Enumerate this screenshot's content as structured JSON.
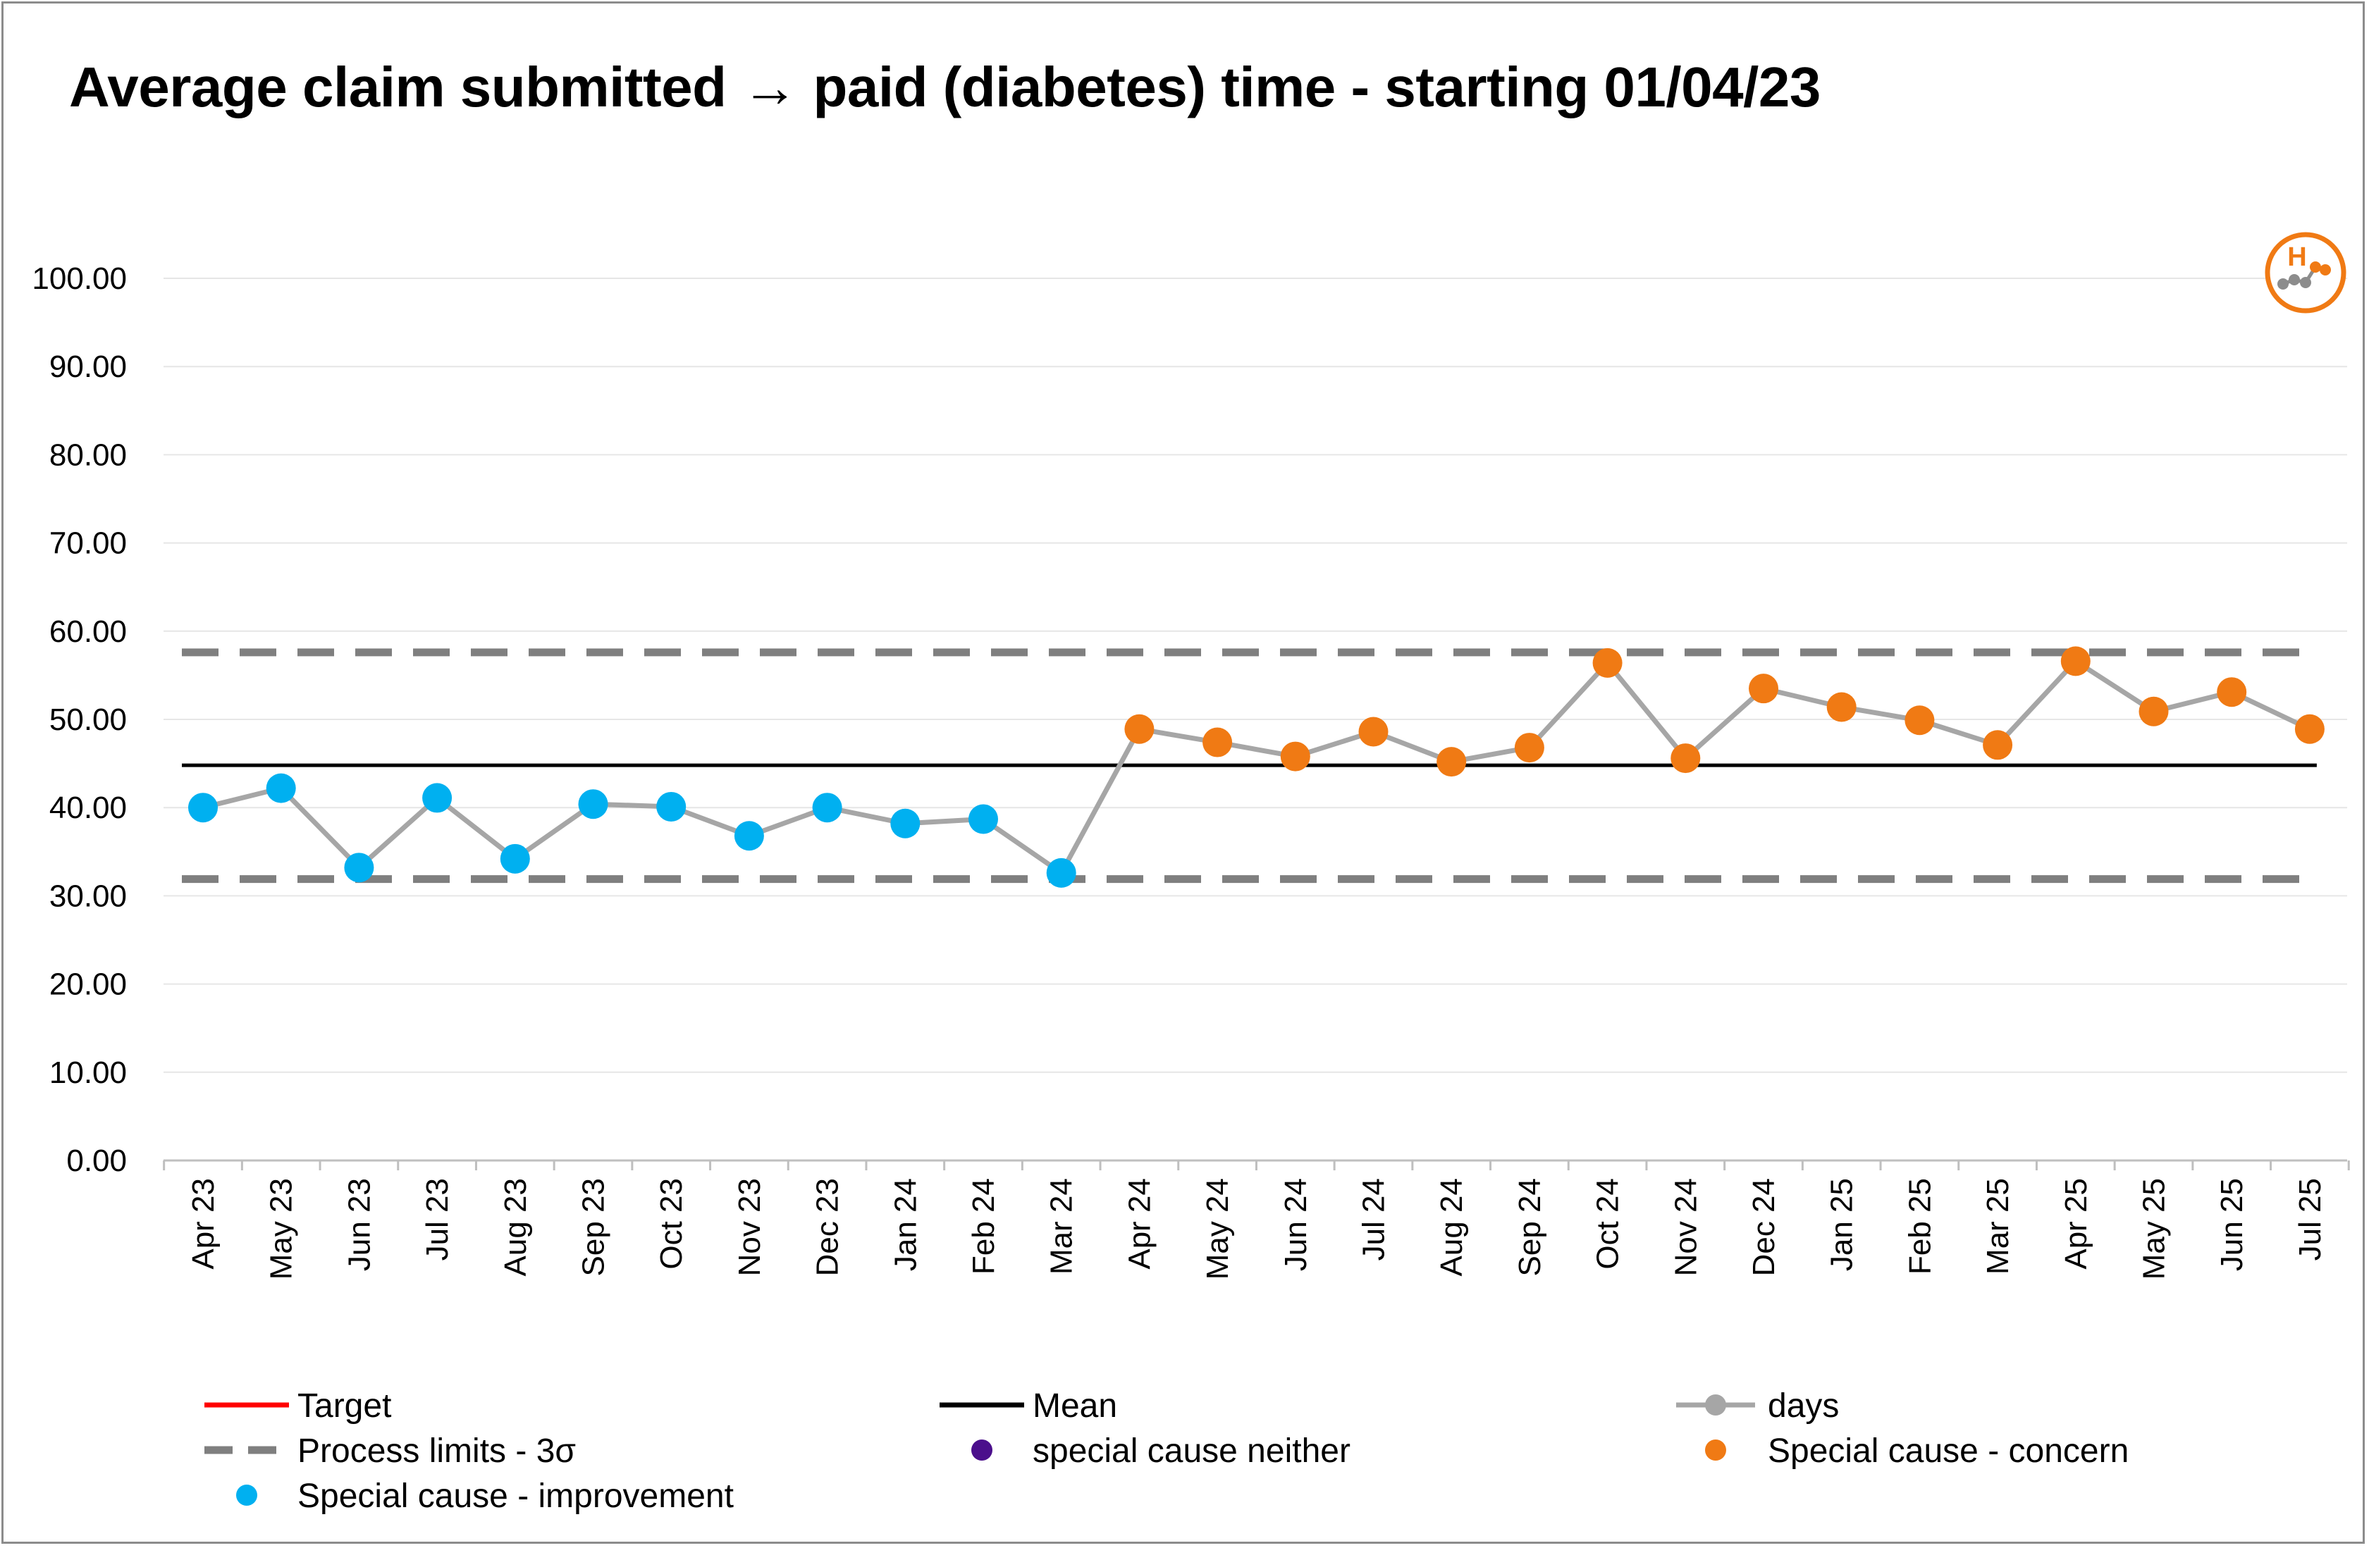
{
  "chart_data": {
    "type": "line",
    "title": "Average claim submitted → paid (diabetes) time - starting 01/04/23",
    "categories": [
      "Apr 23",
      "May 23",
      "Jun 23",
      "Jul 23",
      "Aug 23",
      "Sep 23",
      "Oct 23",
      "Nov 23",
      "Dec 23",
      "Jan 24",
      "Feb 24",
      "Mar 24",
      "Apr 24",
      "May 24",
      "Jun 24",
      "Jul 24",
      "Aug 24",
      "Sep 24",
      "Oct 24",
      "Nov 24",
      "Dec 24",
      "Jan 25",
      "Feb 25",
      "Mar 25",
      "Apr 25",
      "May 25",
      "Jun 25",
      "Jul 25"
    ],
    "values": [
      40.0,
      42.2,
      33.2,
      41.1,
      34.2,
      40.4,
      40.1,
      36.8,
      40.0,
      38.2,
      38.7,
      32.6,
      48.9,
      47.4,
      45.8,
      48.6,
      45.2,
      46.8,
      56.4,
      45.6,
      53.5,
      51.4,
      49.9,
      47.1,
      56.6,
      50.9,
      53.1,
      48.9
    ],
    "point_class": [
      "improvement",
      "improvement",
      "improvement",
      "improvement",
      "improvement",
      "improvement",
      "improvement",
      "improvement",
      "improvement",
      "improvement",
      "improvement",
      "improvement",
      "concern",
      "concern",
      "concern",
      "concern",
      "concern",
      "concern",
      "concern",
      "concern",
      "concern",
      "concern",
      "concern",
      "concern",
      "concern",
      "concern",
      "concern",
      "concern"
    ],
    "mean": 44.8,
    "upper_limit": 57.6,
    "lower_limit": 31.9,
    "ylim": [
      0,
      100
    ],
    "yticks": [
      "0.00",
      "10.00",
      "20.00",
      "30.00",
      "40.00",
      "50.00",
      "60.00",
      "70.00",
      "80.00",
      "90.00",
      "100.00"
    ],
    "grid": true,
    "legend_position": "bottom",
    "legend": {
      "target": "Target",
      "mean": "Mean",
      "days": "days",
      "limits": "Process limits - 3σ",
      "neither": "special cause neither",
      "concern": "Special cause - concern",
      "improvement": "Special cause  - improvement"
    },
    "colors": {
      "target": "#ff0000",
      "mean": "#000000",
      "days_line": "#a6a6a6",
      "limits": "#7f7f7f",
      "neither": "#4b0f8c",
      "concern": "#f07a14",
      "improvement": "#00b0f0"
    },
    "icon": {
      "name": "spc-high-concern-icon",
      "letter": "H"
    }
  }
}
